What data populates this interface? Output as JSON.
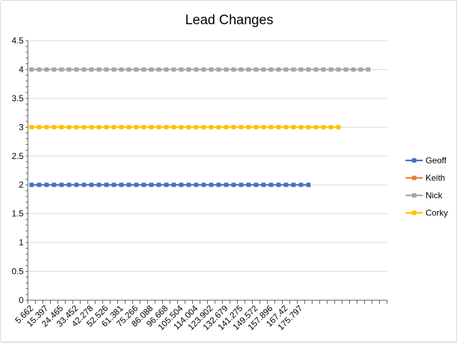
{
  "chart_data": {
    "type": "line",
    "title": "Lead Changes",
    "xlabel": "",
    "ylabel": "",
    "ylim": [
      0,
      4.5
    ],
    "yticks": [
      "0",
      "0.5",
      "1",
      "1.5",
      "2",
      "2.5",
      "3",
      "3.5",
      "4",
      "4.5"
    ],
    "grid": "horizontal",
    "legend_position": "right",
    "x_category_count": 48,
    "x_tick_labels": [
      "5.662",
      "15.397",
      "24.465",
      "33.452",
      "42.278",
      "52.526",
      "61.381",
      "75.266",
      "86.088",
      "96.668",
      "105.504",
      "114.004",
      "123.902",
      "132.679",
      "141.275",
      "149.572",
      "157.896",
      "167.42",
      "175.797"
    ],
    "series": [
      {
        "name": "Geoff",
        "color": "#4472c4",
        "y": 2,
        "point_count": 38
      },
      {
        "name": "Keith",
        "color": "#ed7d31",
        "y": null,
        "point_count": 0
      },
      {
        "name": "Nick",
        "color": "#a5a5a5",
        "y": 4,
        "point_count": 46
      },
      {
        "name": "Corky",
        "color": "#ffc000",
        "y": 3,
        "point_count": 42
      }
    ]
  }
}
